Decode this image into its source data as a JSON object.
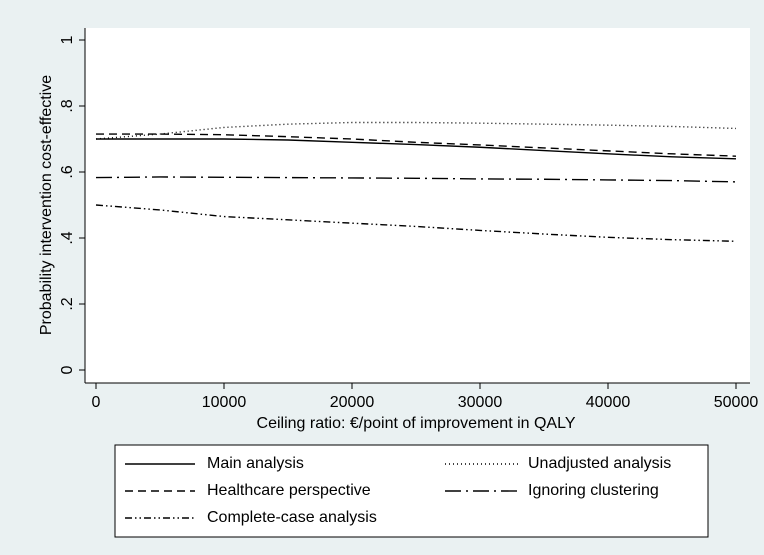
{
  "chart_data": {
    "type": "line",
    "y_label": "Probability intervention cost-effective",
    "x_label": "Ceiling ratio: €/point of improvement in QALY",
    "x": [
      0,
      5000,
      10000,
      15000,
      20000,
      25000,
      30000,
      35000,
      40000,
      45000,
      50000
    ],
    "xlim": [
      0,
      50000
    ],
    "xticks": [
      0,
      10000,
      20000,
      30000,
      40000,
      50000
    ],
    "ylim": [
      0,
      1
    ],
    "yticks": [
      0,
      {
        "value": 0.2,
        "label": ".2"
      },
      {
        "value": 0.4,
        "label": ".4"
      },
      {
        "value": 0.6,
        "label": ".6"
      },
      {
        "value": 0.8,
        "label": ".8"
      },
      1
    ],
    "series": [
      {
        "name": "Main analysis",
        "color": "#000000",
        "line_style": "solid",
        "values": [
          0.7,
          0.7,
          0.7,
          0.697,
          0.69,
          0.683,
          0.675,
          0.665,
          0.655,
          0.646,
          0.64
        ]
      },
      {
        "name": "Unadjusted analysis",
        "color": "#000000",
        "line_style": "dot",
        "values": [
          0.7,
          0.715,
          0.735,
          0.745,
          0.75,
          0.75,
          0.748,
          0.745,
          0.742,
          0.738,
          0.732
        ]
      },
      {
        "name": "Healthcare perspective",
        "color": "#000000",
        "line_style": "dash",
        "values": [
          0.715,
          0.715,
          0.713,
          0.707,
          0.7,
          0.69,
          0.682,
          0.673,
          0.664,
          0.655,
          0.648
        ]
      },
      {
        "name": "Ignoring clustering",
        "color": "#000000",
        "line_style": "longdash-dot",
        "values": [
          0.583,
          0.585,
          0.584,
          0.583,
          0.582,
          0.581,
          0.579,
          0.578,
          0.576,
          0.574,
          0.57
        ]
      },
      {
        "name": "Complete-case analysis",
        "color": "#000000",
        "line_style": "dash-dot-dot",
        "values": [
          0.5,
          0.485,
          0.465,
          0.455,
          0.445,
          0.435,
          0.423,
          0.412,
          0.402,
          0.395,
          0.39
        ]
      }
    ]
  }
}
